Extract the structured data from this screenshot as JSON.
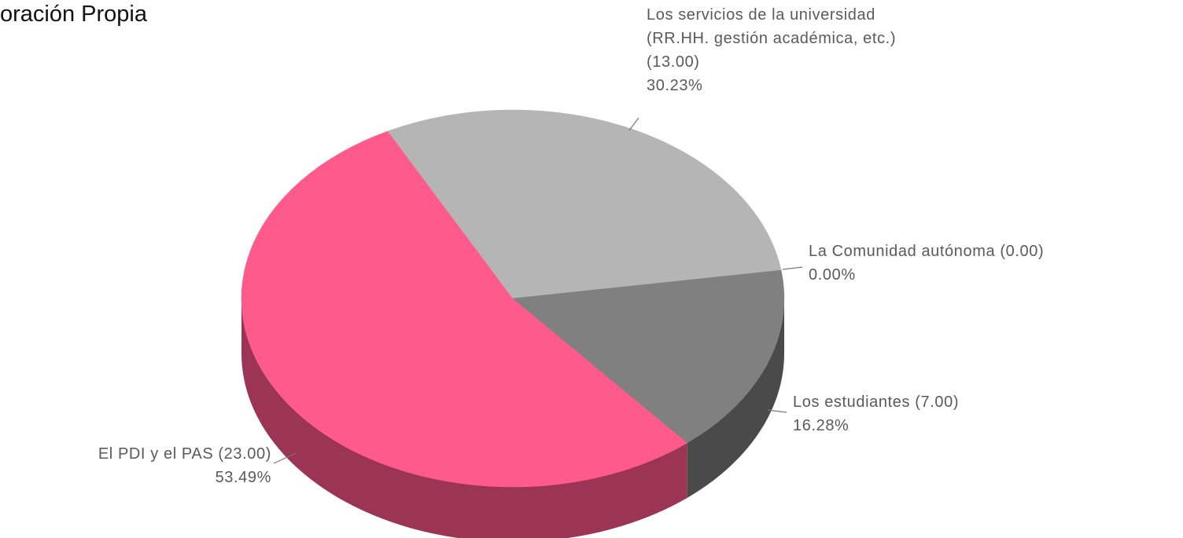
{
  "source": "oración Propia",
  "chart_data": {
    "type": "pie",
    "three_d": true,
    "categories": [
      "El PDI y el PAS (23.00)",
      "Los servicios de la universidad\n(RR.HH. gestión académica, etc.)\n(13.00)",
      "La Comunidad autónoma (0.00)",
      "Los estudiantes (7.00)"
    ],
    "values": [
      53.49,
      30.23,
      0,
      16.28
    ],
    "value_labels": [
      "53.49%",
      "30.23%",
      "0.00%",
      "16.28%"
    ],
    "colors": [
      "#ff5a8c",
      "#b5b5b5",
      "#6e6e6e",
      "#808080"
    ],
    "side_colors": [
      "#9c3456",
      "#7a7a7a",
      "#3e3e3e",
      "#4a4a4a"
    ]
  }
}
